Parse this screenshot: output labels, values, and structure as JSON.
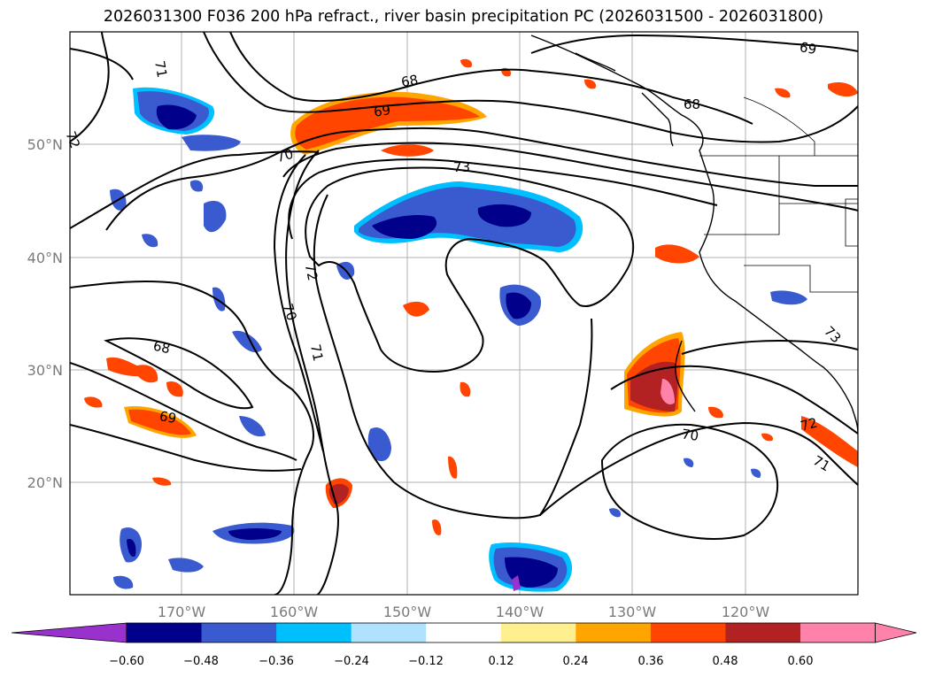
{
  "title": "2026031300 F036 200 hPa refract., river basin precipitation PC (2026031500 - 2026031800)",
  "lat_labels": [
    "50°N",
    "40°N",
    "30°N",
    "20°N"
  ],
  "lon_labels": [
    "170°W",
    "160°W",
    "150°W",
    "140°W",
    "130°W",
    "120°W"
  ],
  "contour_labels": [
    "68",
    "69",
    "70",
    "71",
    "72",
    "73",
    "68",
    "69",
    "71",
    "72",
    "70",
    "68",
    "69",
    "70",
    "71",
    "72",
    "73"
  ],
  "colorbar": {
    "colors": [
      "#9932cc",
      "#00008b",
      "#3a5bd0",
      "#00bfff",
      "#b0e2ff",
      "#ffffff",
      "#fff08f",
      "#ffa500",
      "#ff4500",
      "#b22222",
      "#ff82ab",
      "#ff82ab"
    ],
    "ticks": [
      "−0.60",
      "−0.48",
      "−0.36",
      "−0.24",
      "−0.12",
      "0.12",
      "0.24",
      "0.36",
      "0.48",
      "0.60"
    ]
  }
}
